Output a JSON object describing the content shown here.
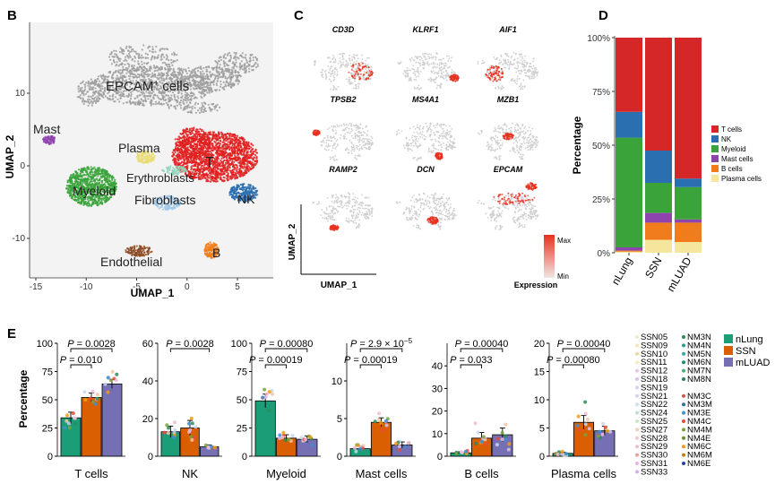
{
  "panels": {
    "b": "B",
    "c": "C",
    "d": "D",
    "e": "E"
  },
  "umap": {
    "xlabel": "UMAP_1",
    "ylabel": "UMAP_2",
    "xticks": [
      "-15",
      "-10",
      "-5",
      "0",
      "5"
    ],
    "yticks": [
      "10",
      "0",
      "-10"
    ],
    "clusters": [
      {
        "key": "epcam",
        "label": "EPCAM",
        "sup": "+",
        "suffix": " cells",
        "color": "#9e9e9e"
      },
      {
        "key": "mast",
        "label": "Mast",
        "color": "#8e44ad"
      },
      {
        "key": "plasma",
        "label": "Plasma",
        "color": "#e8dc72"
      },
      {
        "key": "t",
        "label": "T",
        "color": "#e02020"
      },
      {
        "key": "erythro",
        "label": "Erythroblasts",
        "color": "#8bd3b8"
      },
      {
        "key": "myeloid",
        "label": "Myeloid",
        "color": "#3aa33a"
      },
      {
        "key": "fibro",
        "label": "Fibroblasts",
        "color": "#9ec5e6"
      },
      {
        "key": "nk",
        "label": "NK",
        "color": "#2a6fb0"
      },
      {
        "key": "endo",
        "label": "Endothelial",
        "color": "#8b4a22"
      },
      {
        "key": "b",
        "label": "B",
        "color": "#f07c1b"
      }
    ]
  },
  "feature_plots": {
    "genes": [
      "CD3D",
      "KLRF1",
      "AIF1",
      "TPSB2",
      "MS4A1",
      "MZB1",
      "RAMP2",
      "DCN",
      "EPCAM"
    ],
    "xlabel": "UMAP_1",
    "ylabel": "UMAP_2",
    "legend": {
      "max": "Max",
      "min": "Min",
      "title": "Expression",
      "max_color": "#e8311f",
      "min_color": "#f2e6e4"
    }
  },
  "chart_data": [
    {
      "id": "composition",
      "type": "bar",
      "stacked": true,
      "ylabel": "Percentage",
      "yticks": [
        "0%",
        "25%",
        "50%",
        "75%",
        "100%"
      ],
      "ylim": [
        0,
        100
      ],
      "categories": [
        "nLung",
        "SSN",
        "mLUAD"
      ],
      "series": [
        {
          "name": "Plasma cells",
          "color": "#f4e69c",
          "values": [
            0.5,
            6,
            5
          ]
        },
        {
          "name": "B cells",
          "color": "#f07c1b",
          "values": [
            0.5,
            8,
            9
          ]
        },
        {
          "name": "Mast cells",
          "color": "#8e44ad",
          "values": [
            1.5,
            4.5,
            1.5
          ]
        },
        {
          "name": "Myeloid",
          "color": "#3aa33a",
          "values": [
            51,
            14,
            15
          ]
        },
        {
          "name": "NK",
          "color": "#2a6fb0",
          "values": [
            12,
            15,
            4
          ]
        },
        {
          "name": "T cells",
          "color": "#d62728",
          "values": [
            34.5,
            52.5,
            65.5
          ]
        }
      ],
      "legend": {
        "position": "right"
      }
    },
    {
      "id": "per-celltype",
      "type": "bar",
      "ylabel": "Percentage",
      "groups": [
        "nLung",
        "SSN",
        "mLUAD"
      ],
      "group_colors": [
        "#1b9e77",
        "#d95f02",
        "#7570b3"
      ],
      "panels": [
        {
          "name": "T cells",
          "values": [
            34,
            52,
            64
          ],
          "errors": [
            5,
            4,
            4
          ],
          "ylim": [
            0,
            100
          ],
          "yticks": [
            "0",
            "25",
            "50",
            "75",
            "100"
          ],
          "pvalues": [
            {
              "text": "P = 0.010",
              "pair": [
                0,
                1
              ]
            },
            {
              "text": "P = 0.0028",
              "pair": [
                0,
                2
              ]
            }
          ]
        },
        {
          "name": "NK",
          "values": [
            13,
            15,
            5
          ],
          "errors": [
            3,
            4,
            1
          ],
          "ylim": [
            0,
            60
          ],
          "yticks": [
            "0",
            "20",
            "40",
            "60"
          ],
          "pvalues": [
            {
              "text": "P = 0.0028",
              "pair": [
                0,
                2
              ]
            }
          ]
        },
        {
          "name": "Myeloid",
          "values": [
            49,
            16,
            15
          ],
          "errors": [
            6,
            3,
            3
          ],
          "ylim": [
            0,
            100
          ],
          "yticks": [
            "0",
            "25",
            "50",
            "75",
            "100"
          ],
          "pvalues": [
            {
              "text": "P = 0.00019",
              "pair": [
                0,
                1
              ]
            },
            {
              "text": "P = 0.00080",
              "pair": [
                0,
                2
              ]
            }
          ]
        },
        {
          "name": "Mast cells",
          "values": [
            1,
            4.5,
            1.5
          ],
          "errors": [
            0.3,
            0.6,
            0.4
          ],
          "ylim": [
            0,
            15
          ],
          "yticks": [
            "0",
            "5",
            "10"
          ],
          "pvalues": [
            {
              "text": "P = 0.00019",
              "pair": [
                0,
                1
              ]
            },
            {
              "text": "P = 2.9 × 10",
              "sup": "−5",
              "pair": [
                0,
                2
              ]
            }
          ]
        },
        {
          "name": "B cells",
          "values": [
            1.5,
            8,
            9.5
          ],
          "errors": [
            0.5,
            2.5,
            3
          ],
          "ylim": [
            0,
            50
          ],
          "yticks": [
            "0",
            "10",
            "20",
            "30",
            "40"
          ],
          "pvalues": [
            {
              "text": "P = 0.033",
              "pair": [
                0,
                1
              ]
            },
            {
              "text": "P = 0.00040",
              "pair": [
                0,
                2
              ]
            }
          ]
        },
        {
          "name": "Plasma cells",
          "values": [
            0.5,
            6,
            4.5
          ],
          "errors": [
            0.2,
            1.2,
            0.8
          ],
          "ylim": [
            0,
            20
          ],
          "yticks": [
            "0",
            "5",
            "10",
            "15",
            "20"
          ],
          "pvalues": [
            {
              "text": "P = 0.00080",
              "pair": [
                0,
                1
              ]
            },
            {
              "text": "P = 0.00040",
              "pair": [
                0,
                2
              ]
            }
          ]
        }
      ]
    }
  ],
  "sample_legend": {
    "col1": [
      {
        "name": "SSN05",
        "color": "#f4e8c8"
      },
      {
        "name": "SSN09",
        "color": "#f6e6b0"
      },
      {
        "name": "SSN10",
        "color": "#f5d99a"
      },
      {
        "name": "SSN11",
        "color": "#f9efb0"
      },
      {
        "name": "SSN12",
        "color": "#e8c3e0"
      },
      {
        "name": "SSN18",
        "color": "#d9c2ea"
      },
      {
        "name": "SSN19",
        "color": "#c8d8f0"
      },
      {
        "name": "SSN21",
        "color": "#d3d3f2"
      },
      {
        "name": "SSN22",
        "color": "#c6e3f2"
      },
      {
        "name": "SSN24",
        "color": "#b8e0dc"
      },
      {
        "name": "SSN25",
        "color": "#c8e8c8"
      },
      {
        "name": "SSN27",
        "color": "#f4d1b0"
      },
      {
        "name": "SSN28",
        "color": "#f6c7c7"
      },
      {
        "name": "SSN29",
        "color": "#f2b8d8"
      },
      {
        "name": "SSN30",
        "color": "#f0a0a0"
      },
      {
        "name": "SSN31",
        "color": "#e8b0f0"
      },
      {
        "name": "SSN33",
        "color": "#d0b0f0"
      }
    ],
    "col2": [
      {
        "name": "NM3N",
        "color": "#2e8b57"
      },
      {
        "name": "NM4N",
        "color": "#2a9d8f"
      },
      {
        "name": "NM5N",
        "color": "#3ba5a0"
      },
      {
        "name": "NM6N",
        "color": "#1f8a70"
      },
      {
        "name": "NM7N",
        "color": "#4db07a"
      },
      {
        "name": "NM8N",
        "color": "#2c7f5e"
      },
      {
        "name": "NM3C",
        "color": "#d9534f"
      },
      {
        "name": "NM3M",
        "color": "#2f6f9f"
      },
      {
        "name": "NM3E",
        "color": "#3e8ed0"
      },
      {
        "name": "NM4C",
        "color": "#e74c3c"
      },
      {
        "name": "NM4M",
        "color": "#7aa33a"
      },
      {
        "name": "NM4E",
        "color": "#6c8e2e"
      },
      {
        "name": "NM6C",
        "color": "#f39c12"
      },
      {
        "name": "NM6M",
        "color": "#b8860b"
      },
      {
        "name": "NM6E",
        "color": "#2c3e9f"
      }
    ],
    "groups": [
      {
        "name": "nLung",
        "color": "#1b9e77"
      },
      {
        "name": "SSN",
        "color": "#d95f02"
      },
      {
        "name": "mLUAD",
        "color": "#7570b3"
      }
    ]
  }
}
